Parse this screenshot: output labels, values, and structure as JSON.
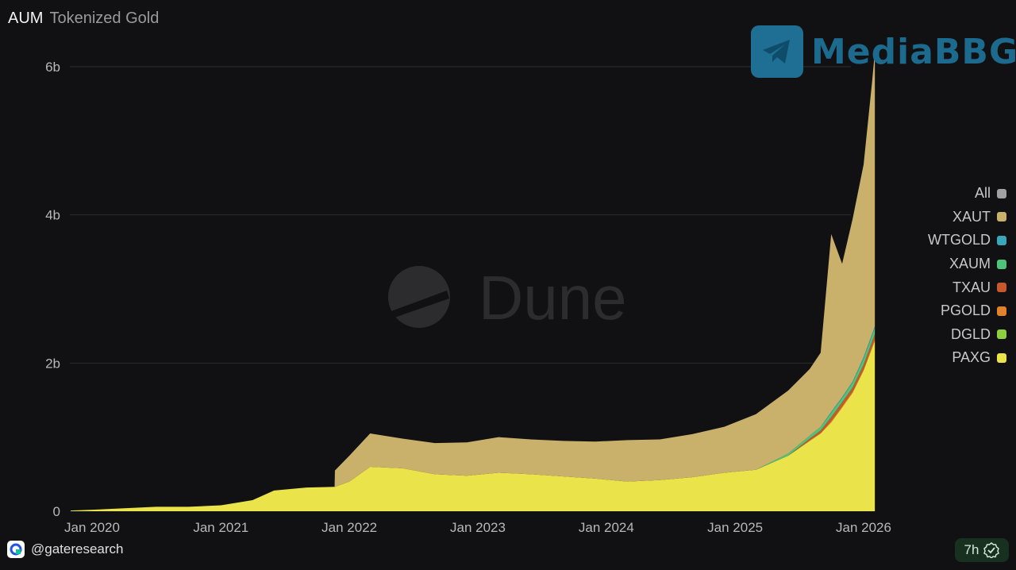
{
  "header": {
    "title": "AUM",
    "subtitle": "Tokenized Gold"
  },
  "brand": {
    "name": "MediaBBG",
    "icon": "telegram-icon"
  },
  "watermark": {
    "text": "Dune",
    "icon": "dune-logo-icon"
  },
  "footer": {
    "handle": "@gateresearch",
    "age": "7h",
    "icon": "gate-logo-icon",
    "verified_icon": "verified-check-icon"
  },
  "colors": {
    "background": "#111113",
    "XAUT": "#c9b06b",
    "WTGOLD": "#3aa6b9",
    "XAUM": "#4fc37a",
    "TXAU": "#c8582c",
    "PGOLD": "#e0832c",
    "DGLD": "#8ccf3f",
    "PAXG": "#ebe34a",
    "All": "#a0a0a0"
  },
  "chart_data": {
    "type": "area",
    "stacked": true,
    "title": "AUM",
    "subtitle": "Tokenized Gold",
    "ylim": [
      0,
      6000000000
    ],
    "yticks": [
      0,
      2000000000,
      4000000000,
      6000000000
    ],
    "ytick_labels": [
      "0",
      "2b",
      "4b",
      "6b"
    ],
    "xlim": [
      "2019-11-01",
      "2026-03-01"
    ],
    "xticks": [
      "2020-01-01",
      "2021-01-01",
      "2022-01-01",
      "2023-01-01",
      "2024-01-01",
      "2025-01-01",
      "2026-01-01"
    ],
    "xtick_labels": [
      "Jan 2020",
      "Jan 2021",
      "Jan 2022",
      "Jan 2023",
      "Jan 2024",
      "Jan 2025",
      "Jan 2026"
    ],
    "grid": true,
    "legend_position": "right",
    "legend": [
      "All",
      "XAUT",
      "WTGOLD",
      "XAUM",
      "TXAU",
      "PGOLD",
      "DGLD",
      "PAXG"
    ],
    "x": [
      "2019-11-01",
      "2020-01-01",
      "2020-04-01",
      "2020-07-01",
      "2020-10-01",
      "2021-01-01",
      "2021-04-01",
      "2021-06-01",
      "2021-09-01",
      "2021-11-20",
      "2021-11-21",
      "2022-01-01",
      "2022-03-01",
      "2022-06-01",
      "2022-09-01",
      "2022-12-01",
      "2023-03-01",
      "2023-06-01",
      "2023-09-01",
      "2023-12-01",
      "2024-03-01",
      "2024-06-01",
      "2024-09-01",
      "2024-12-01",
      "2025-03-01",
      "2025-06-01",
      "2025-08-01",
      "2025-09-01",
      "2025-10-01",
      "2025-11-01",
      "2025-12-01",
      "2026-01-01",
      "2026-01-25",
      "2026-02-02"
    ],
    "series": [
      {
        "name": "PAXG",
        "values": [
          0.01,
          0.02,
          0.04,
          0.06,
          0.06,
          0.08,
          0.15,
          0.28,
          0.32,
          0.33,
          0.33,
          0.4,
          0.6,
          0.58,
          0.5,
          0.48,
          0.52,
          0.5,
          0.47,
          0.44,
          0.4,
          0.42,
          0.46,
          0.52,
          0.56,
          0.75,
          0.95,
          1.05,
          1.2,
          1.4,
          1.6,
          1.9,
          2.2,
          2.3
        ]
      },
      {
        "name": "DGLD",
        "values": [
          0,
          0,
          0,
          0,
          0,
          0,
          0,
          0,
          0,
          0,
          0,
          0,
          0,
          0,
          0,
          0,
          0,
          0,
          0,
          0,
          0,
          0,
          0,
          0,
          0,
          0,
          0,
          0,
          0,
          0,
          0,
          0,
          0,
          0
        ]
      },
      {
        "name": "PGOLD",
        "values": [
          0,
          0,
          0,
          0,
          0,
          0,
          0,
          0,
          0,
          0,
          0,
          0,
          0,
          0,
          0,
          0,
          0,
          0,
          0,
          0,
          0,
          0,
          0,
          0,
          0,
          0,
          0.01,
          0.01,
          0.02,
          0.02,
          0.02,
          0.02,
          0.03,
          0.03
        ]
      },
      {
        "name": "TXAU",
        "values": [
          0,
          0,
          0,
          0,
          0,
          0,
          0,
          0,
          0,
          0,
          0,
          0,
          0,
          0,
          0,
          0,
          0,
          0,
          0,
          0,
          0,
          0,
          0,
          0,
          0,
          0,
          0.02,
          0.03,
          0.05,
          0.05,
          0.05,
          0.06,
          0.06,
          0.06
        ]
      },
      {
        "name": "XAUM",
        "values": [
          0,
          0,
          0,
          0,
          0,
          0,
          0,
          0,
          0,
          0,
          0,
          0,
          0,
          0,
          0,
          0,
          0,
          0,
          0,
          0,
          0,
          0,
          0,
          0,
          0,
          0.03,
          0.04,
          0.05,
          0.06,
          0.06,
          0.07,
          0.08,
          0.08,
          0.09
        ]
      },
      {
        "name": "WTGOLD",
        "values": [
          0,
          0,
          0,
          0,
          0,
          0,
          0,
          0,
          0,
          0,
          0,
          0,
          0,
          0,
          0,
          0,
          0,
          0,
          0,
          0,
          0,
          0,
          0,
          0,
          0,
          0,
          0,
          0,
          0.01,
          0.01,
          0.01,
          0.02,
          0.02,
          0.02
        ]
      },
      {
        "name": "XAUT",
        "values": [
          0,
          0,
          0,
          0,
          0,
          0,
          0,
          0,
          0,
          0,
          0.22,
          0.35,
          0.45,
          0.4,
          0.42,
          0.45,
          0.48,
          0.47,
          0.48,
          0.5,
          0.56,
          0.55,
          0.58,
          0.62,
          0.75,
          0.85,
          0.9,
          1.0,
          2.4,
          1.8,
          2.2,
          2.6,
          3.4,
          3.7
        ]
      }
    ],
    "units": "billions (values above)"
  }
}
